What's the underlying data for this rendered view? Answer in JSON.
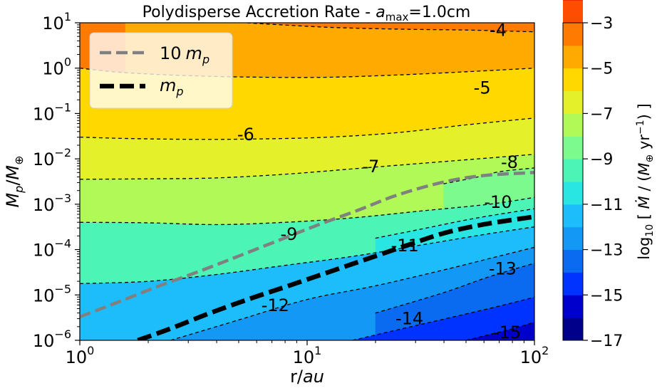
{
  "figure": {
    "title_prefix": "Polydisperse Accretion Rate - ",
    "title_var": "a",
    "title_sub": "max",
    "title_value": "=1.0cm"
  },
  "chart_data": {
    "type": "heatmap",
    "subtype": "filled-contour",
    "xlabel": {
      "plain": "r/",
      "italic": "au"
    },
    "ylabel": {
      "base": "M",
      "base_sub": "p",
      "sep": "/",
      "denom": "M",
      "denom_sub": "⊕"
    },
    "xscale": "log",
    "yscale": "log",
    "xlim": [
      1,
      100
    ],
    "ylim": [
      1e-06,
      10
    ],
    "x_ticks": [
      {
        "value": 1,
        "base": "10",
        "exp": "0"
      },
      {
        "value": 10,
        "base": "10",
        "exp": "1"
      },
      {
        "value": 100,
        "base": "10",
        "exp": "2"
      }
    ],
    "y_ticks": [
      {
        "value": 1e-06,
        "base": "10",
        "exp": "−6"
      },
      {
        "value": 1e-05,
        "base": "10",
        "exp": "−5"
      },
      {
        "value": 0.0001,
        "base": "10",
        "exp": "−4"
      },
      {
        "value": 0.001,
        "base": "10",
        "exp": "−3"
      },
      {
        "value": 0.01,
        "base": "10",
        "exp": "−2"
      },
      {
        "value": 0.1,
        "base": "10",
        "exp": "−1"
      },
      {
        "value": 1,
        "base": "10",
        "exp": "0"
      },
      {
        "value": 10,
        "base": "10",
        "exp": "1"
      }
    ],
    "colorbar": {
      "label": {
        "pre": "log",
        "pre_sub": "10",
        "open": " [ ",
        "mdot": "Ṁ",
        "mid": " / (",
        "m": "M",
        "m_sub": "⊕",
        "unit": " yr",
        "unit_sup": "−1",
        "close": ") ]"
      },
      "range": [
        -17,
        -3
      ],
      "ticks": [
        {
          "value": -3,
          "label": "−3"
        },
        {
          "value": -5,
          "label": "−5"
        },
        {
          "value": -7,
          "label": "−7"
        },
        {
          "value": -9,
          "label": "−9"
        },
        {
          "value": -11,
          "label": "−11"
        },
        {
          "value": -13,
          "label": "−13"
        },
        {
          "value": -15,
          "label": "−15"
        },
        {
          "value": -17,
          "label": "−17"
        }
      ],
      "colormap": "jet",
      "level_colors": [
        "#00008b",
        "#0000cd",
        "#0033ff",
        "#0a6af0",
        "#1398f5",
        "#1dbdfb",
        "#2ae6e3",
        "#4cf5b5",
        "#7dfa8e",
        "#b0f957",
        "#e4f02a",
        "#ffd800",
        "#ffaa00",
        "#ff7a00",
        "#ff4d00",
        "#e81b0a",
        "#b4050a"
      ]
    },
    "contour_levels": [
      {
        "value": -4,
        "label": "-4",
        "points": [
          [
            0.2,
            1.09
          ],
          [
            0.5,
            1.07
          ],
          [
            0.8,
            0.98
          ],
          [
            1.1,
            0.9
          ],
          [
            1.4,
            0.86
          ],
          [
            1.7,
            0.84
          ],
          [
            2.0,
            0.8
          ]
        ],
        "label_at": [
          1.84,
          0.82
        ]
      },
      {
        "value": -5,
        "label": "-5",
        "points": [
          [
            0.0,
            0.0
          ],
          [
            0.2,
            -0.1
          ],
          [
            0.5,
            -0.17
          ],
          [
            0.8,
            -0.2
          ],
          [
            1.1,
            -0.2
          ],
          [
            1.4,
            -0.15
          ],
          [
            1.7,
            -0.08
          ],
          [
            2.0,
            0.0
          ]
        ],
        "label_at": [
          1.77,
          -0.45
        ]
      },
      {
        "value": -6,
        "label": "-6",
        "points": [
          [
            0.0,
            -1.52
          ],
          [
            0.2,
            -1.55
          ],
          [
            0.5,
            -1.57
          ],
          [
            0.8,
            -1.56
          ],
          [
            1.1,
            -1.52
          ],
          [
            1.4,
            -1.42
          ],
          [
            1.7,
            -1.25
          ],
          [
            2.0,
            -1.1
          ]
        ],
        "label_at": [
          0.73,
          -1.48
        ]
      },
      {
        "value": -7,
        "label": "-7",
        "points": [
          [
            0.0,
            -2.45
          ],
          [
            0.3,
            -2.44
          ],
          [
            0.6,
            -2.42
          ],
          [
            0.9,
            -2.34
          ],
          [
            1.2,
            -2.22
          ],
          [
            1.5,
            -2.1
          ],
          [
            1.8,
            -1.98
          ],
          [
            2.0,
            -1.9
          ]
        ],
        "label_at": [
          1.28,
          -2.19
        ]
      },
      {
        "value": -8,
        "label": "-8",
        "points": [
          [
            1.6,
            -2.55
          ],
          [
            1.75,
            -2.4
          ],
          [
            1.85,
            -2.28
          ],
          [
            2.0,
            -2.2
          ]
        ],
        "label_at": [
          1.89,
          -2.09
        ]
      },
      {
        "value": -9,
        "label": "-9",
        "points": [
          [
            0.0,
            -3.4
          ],
          [
            0.3,
            -3.41
          ],
          [
            0.6,
            -3.45
          ],
          [
            0.9,
            -3.4
          ],
          [
            1.2,
            -3.3
          ],
          [
            1.5,
            -3.15
          ],
          [
            1.8,
            -3.0
          ],
          [
            2.0,
            -2.85
          ]
        ],
        "label_at": [
          0.92,
          -3.68
        ]
      },
      {
        "value": -10,
        "label": "-10",
        "points": [
          [
            1.3,
            -3.75
          ],
          [
            1.5,
            -3.55
          ],
          [
            1.75,
            -3.3
          ],
          [
            2.0,
            -3.1
          ]
        ],
        "label_at": [
          1.84,
          -2.97
        ]
      },
      {
        "value": -11,
        "label": "-11",
        "points": [
          [
            0.0,
            -4.75
          ],
          [
            0.3,
            -4.7
          ],
          [
            0.6,
            -4.55
          ],
          [
            0.9,
            -4.35
          ],
          [
            1.2,
            -4.15
          ],
          [
            1.5,
            -3.9
          ],
          [
            1.8,
            -3.65
          ],
          [
            2.0,
            -3.5
          ]
        ],
        "label_at": [
          1.43,
          -3.93
        ]
      },
      {
        "value": -12,
        "label": "-12",
        "points": [
          [
            0.4,
            -6.0
          ],
          [
            0.7,
            -5.55
          ],
          [
            1.0,
            -5.1
          ],
          [
            1.3,
            -4.8
          ],
          [
            1.6,
            -4.45
          ],
          [
            1.8,
            -4.2
          ],
          [
            2.0,
            -3.95
          ]
        ],
        "label_at": [
          0.86,
          -5.25
        ]
      },
      {
        "value": -13,
        "label": "-13",
        "points": [
          [
            1.3,
            -5.4
          ],
          [
            1.6,
            -4.95
          ],
          [
            1.8,
            -4.6
          ],
          [
            2.0,
            -4.3
          ]
        ],
        "label_at": [
          1.86,
          -4.44
        ]
      },
      {
        "value": -14,
        "label": "-14",
        "points": [
          [
            1.2,
            -6.0
          ],
          [
            1.5,
            -5.65
          ],
          [
            1.8,
            -5.3
          ],
          [
            2.0,
            -5.05
          ]
        ],
        "label_at": [
          1.45,
          -5.54
        ]
      },
      {
        "value": -15,
        "label": "-15",
        "points": [
          [
            1.7,
            -6.0
          ],
          [
            1.9,
            -5.75
          ],
          [
            2.0,
            -5.6
          ]
        ],
        "label_at": [
          1.88,
          -5.84
        ]
      }
    ],
    "series": [
      {
        "name": "10 m_p",
        "name_num": "10",
        "name_var": "m",
        "name_sub": "p",
        "color": "#808080",
        "style": "dashed",
        "x": [
          1,
          1.5,
          2.25,
          3.4,
          5,
          7.5,
          11,
          17,
          25,
          40,
          60,
          100
        ],
        "y": [
          3.3e-06,
          7.2e-06,
          1.6e-05,
          3.4e-05,
          7.2e-05,
          0.00016,
          0.00034,
          0.00076,
          0.0016,
          0.0031,
          0.0043,
          0.005
        ]
      },
      {
        "name": "m_p",
        "name_var": "m",
        "name_sub": "p",
        "color": "#000000",
        "style": "dashed",
        "x": [
          1.8,
          2.5,
          3.7,
          5.5,
          8,
          12,
          18,
          27,
          40,
          60,
          100
        ],
        "y": [
          1e-06,
          1.8e-06,
          3.9e-06,
          8e-06,
          1.5e-05,
          3e-05,
          6e-05,
          0.00012,
          0.00023,
          0.00036,
          0.00053
        ]
      }
    ],
    "legend": "top-left",
    "grid": false
  }
}
